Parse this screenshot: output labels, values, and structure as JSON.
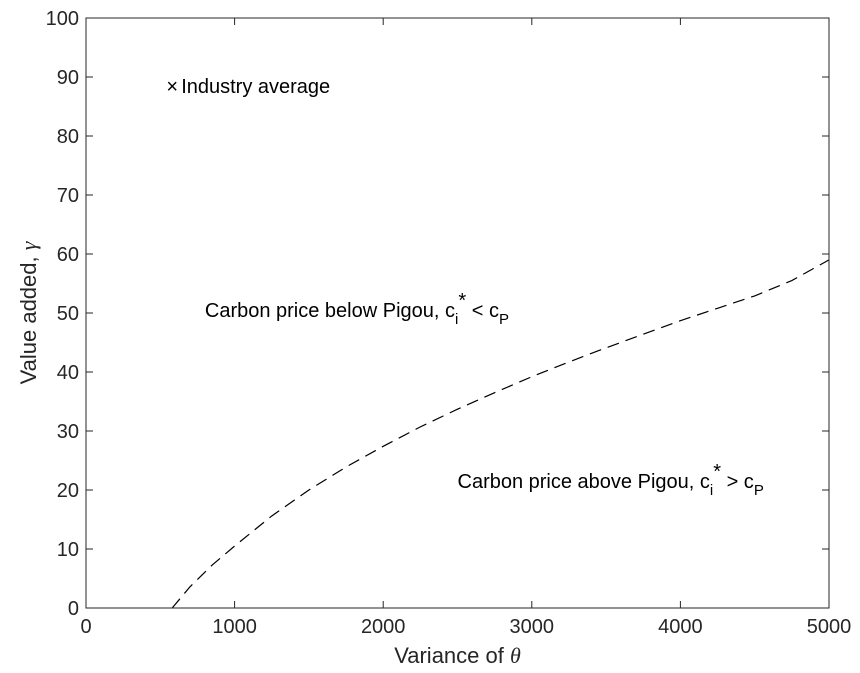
{
  "chart_data": {
    "type": "line",
    "xlabel_text": "Variance of ",
    "xlabel_symbol": "θ",
    "ylabel_text": "Value added, ",
    "ylabel_symbol": "γ",
    "xlim": [
      0,
      5000
    ],
    "ylim": [
      0,
      100
    ],
    "x_ticks": [
      0,
      1000,
      2000,
      3000,
      4000,
      5000
    ],
    "y_ticks": [
      0,
      10,
      20,
      30,
      40,
      50,
      60,
      70,
      80,
      90,
      100
    ],
    "grid": false,
    "series": [
      {
        "style": "dashed",
        "color": "#000000",
        "x": [
          580,
          700,
          850,
          1000,
          1250,
          1500,
          1750,
          2000,
          2250,
          2500,
          2750,
          3000,
          3250,
          3500,
          3750,
          4000,
          4250,
          4500,
          4750,
          5000
        ],
        "y": [
          0,
          3.6,
          7.3,
          10.5,
          15.6,
          20.0,
          23.9,
          27.4,
          30.7,
          33.7,
          36.5,
          39.2,
          41.7,
          44.1,
          46.4,
          48.7,
          50.8,
          52.9,
          55.5,
          59.0
        ]
      }
    ],
    "markers": [
      {
        "symbol": "×",
        "x": 580,
        "y": 88.5,
        "label": "Industry average"
      }
    ],
    "annotations": [
      {
        "x": 800,
        "y": 50.5,
        "text": "Carbon price below Pigou, c",
        "sub1": "i",
        "sup": "*",
        "mid": " < c",
        "sub2": "P"
      },
      {
        "x": 2500,
        "y": 21.5,
        "text": "Carbon price above Pigou, c",
        "sub1": "i",
        "sup": "*",
        "mid": " > c",
        "sub2": "P"
      }
    ],
    "colors": {
      "axis": "#262626",
      "line": "#000000",
      "background": "#ffffff"
    }
  }
}
